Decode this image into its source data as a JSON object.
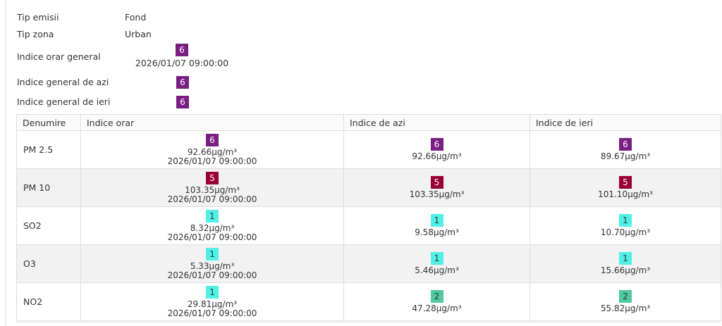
{
  "info": {
    "tip_emisii": {
      "label": "Tip emisii",
      "value": "Fond"
    },
    "tip_zona": {
      "label": "Tip zona",
      "value": "Urban"
    },
    "indice_orar_general": {
      "label": "Indice orar general",
      "badge": "6",
      "timestamp": "2026/01/07 09:00:00"
    },
    "indice_general_azi": {
      "label": "Indice general de azi",
      "badge": "6"
    },
    "indice_general_ieri": {
      "label": "Indice general de ieri",
      "badge": "6"
    }
  },
  "table": {
    "headers": [
      "Denumire",
      "Indice orar",
      "Indice de azi",
      "Indice de ieri"
    ],
    "rows": [
      {
        "name": "PM 2.5",
        "orar": {
          "badge": "6",
          "value": "92.66µg/m³",
          "timestamp": "2026/01/07 09:00:00"
        },
        "azi": {
          "badge": "6",
          "value": "92.66µg/m³"
        },
        "ieri": {
          "badge": "6",
          "value": "89.67µg/m³"
        }
      },
      {
        "name": "PM 10",
        "orar": {
          "badge": "5",
          "value": "103.35µg/m³",
          "timestamp": "2026/01/07 09:00:00"
        },
        "azi": {
          "badge": "5",
          "value": "103.35µg/m³"
        },
        "ieri": {
          "badge": "5",
          "value": "101.10µg/m³"
        }
      },
      {
        "name": "SO2",
        "orar": {
          "badge": "1",
          "value": "8.32µg/m³",
          "timestamp": "2026/01/07 09:00:00"
        },
        "azi": {
          "badge": "1",
          "value": "9.58µg/m³"
        },
        "ieri": {
          "badge": "1",
          "value": "10.70µg/m³"
        }
      },
      {
        "name": "O3",
        "orar": {
          "badge": "1",
          "value": "5.33µg/m³",
          "timestamp": "2026/01/07 09:00:00"
        },
        "azi": {
          "badge": "1",
          "value": "5.46µg/m³"
        },
        "ieri": {
          "badge": "1",
          "value": "15.66µg/m³"
        }
      },
      {
        "name": "NO2",
        "orar": {
          "badge": "1",
          "value": "29.81µg/m³",
          "timestamp": "2026/01/07 09:00:00"
        },
        "azi": {
          "badge": "2",
          "value": "47.28µg/m³"
        },
        "ieri": {
          "badge": "2",
          "value": "55.82µg/m³"
        }
      }
    ]
  },
  "index_colors": {
    "1": "#50f0e6",
    "2": "#4fc9a0",
    "5": "#990033",
    "6": "#7a1e84"
  }
}
